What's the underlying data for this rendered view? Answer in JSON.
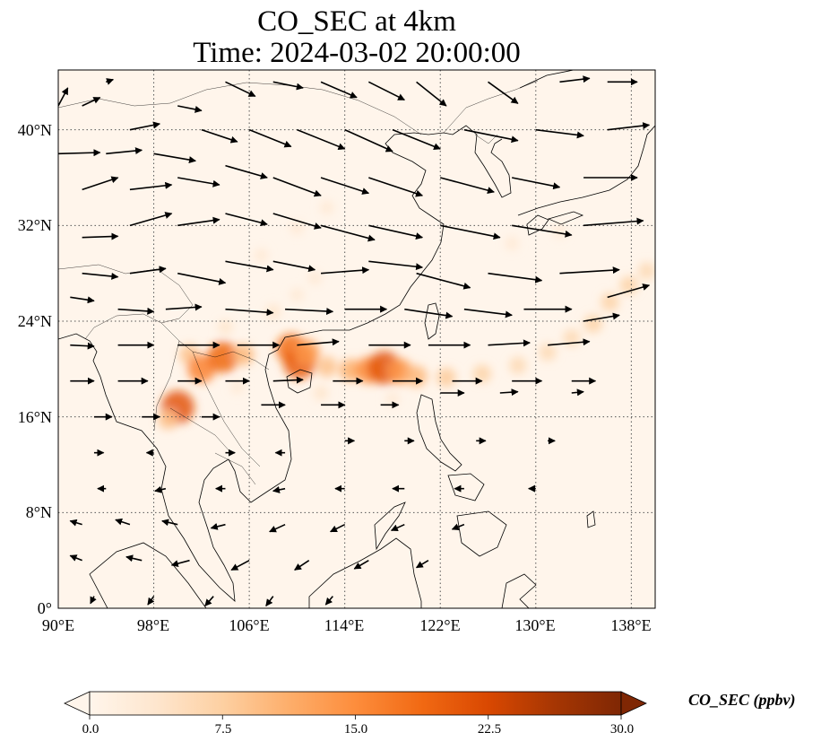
{
  "figure": {
    "title_line1": "CO_SEC at 4km",
    "title_line2": "Time: 2024-03-02 20:00:00"
  },
  "map": {
    "projection": "PlateCarree",
    "lon_range": [
      90,
      140
    ],
    "lat_range": [
      0,
      45
    ],
    "background_color": "#fff5eb",
    "gridlines": "dotted",
    "lat_ticks": [
      {
        "value": 0,
        "label": "0°"
      },
      {
        "value": 8,
        "label": "8°N"
      },
      {
        "value": 16,
        "label": "16°N"
      },
      {
        "value": 24,
        "label": "24°N"
      },
      {
        "value": 32,
        "label": "32°N"
      },
      {
        "value": 40,
        "label": "40°N"
      }
    ],
    "lon_ticks": [
      {
        "value": 90,
        "label": "90°E"
      },
      {
        "value": 98,
        "label": "98°E"
      },
      {
        "value": 106,
        "label": "106°E"
      },
      {
        "value": 114,
        "label": "114°E"
      },
      {
        "value": 122,
        "label": "122°E"
      },
      {
        "value": 130,
        "label": "130°E"
      },
      {
        "value": 138,
        "label": "138°E"
      }
    ],
    "plume": [
      {
        "lon": 101.0,
        "lat": 21.2,
        "value": 9
      },
      {
        "lon": 102.0,
        "lat": 20.0,
        "value": 16
      },
      {
        "lon": 103.8,
        "lat": 21.0,
        "value": 19
      },
      {
        "lon": 105.5,
        "lat": 21.2,
        "value": 10
      },
      {
        "lon": 109.5,
        "lat": 21.7,
        "value": 18
      },
      {
        "lon": 110.2,
        "lat": 20.5,
        "value": 20
      },
      {
        "lon": 110.8,
        "lat": 21.4,
        "value": 14
      },
      {
        "lon": 100.0,
        "lat": 16.8,
        "value": 21
      },
      {
        "lon": 99.2,
        "lat": 15.8,
        "value": 9
      },
      {
        "lon": 112.5,
        "lat": 20.2,
        "value": 9
      },
      {
        "lon": 114.5,
        "lat": 19.9,
        "value": 11
      },
      {
        "lon": 116.0,
        "lat": 19.9,
        "value": 15
      },
      {
        "lon": 117.3,
        "lat": 20.1,
        "value": 21
      },
      {
        "lon": 118.6,
        "lat": 19.8,
        "value": 14
      },
      {
        "lon": 120.0,
        "lat": 19.4,
        "value": 10
      },
      {
        "lon": 122.5,
        "lat": 19.3,
        "value": 8
      },
      {
        "lon": 125.5,
        "lat": 19.6,
        "value": 7
      },
      {
        "lon": 128.5,
        "lat": 20.3,
        "value": 6
      },
      {
        "lon": 131.0,
        "lat": 21.4,
        "value": 6
      },
      {
        "lon": 133.0,
        "lat": 22.6,
        "value": 6
      },
      {
        "lon": 134.8,
        "lat": 23.8,
        "value": 7
      },
      {
        "lon": 136.2,
        "lat": 25.6,
        "value": 7
      },
      {
        "lon": 137.8,
        "lat": 27.0,
        "value": 7
      },
      {
        "lon": 139.3,
        "lat": 28.2,
        "value": 6
      },
      {
        "lon": 104.0,
        "lat": 23.5,
        "value": 4
      },
      {
        "lon": 108.0,
        "lat": 24.8,
        "value": 4
      },
      {
        "lon": 110.0,
        "lat": 26.2,
        "value": 3
      },
      {
        "lon": 111.5,
        "lat": 27.6,
        "value": 3
      },
      {
        "lon": 107.0,
        "lat": 29.5,
        "value": 3
      },
      {
        "lon": 110.0,
        "lat": 31.8,
        "value": 3
      },
      {
        "lon": 112.5,
        "lat": 33.5,
        "value": 3
      },
      {
        "lon": 105.0,
        "lat": 18.5,
        "value": 3
      },
      {
        "lon": 112.0,
        "lat": 18.0,
        "value": 4
      },
      {
        "lon": 118.0,
        "lat": 17.5,
        "value": 3
      },
      {
        "lon": 128.0,
        "lat": 30.5,
        "value": 3
      },
      {
        "lon": 132.0,
        "lat": 31.5,
        "value": 3
      }
    ]
  },
  "wind_field": [
    {
      "lon": 90,
      "lat": 42,
      "dlon": 0.8,
      "dlat": 1.5
    },
    {
      "lon": 92,
      "lat": 42,
      "dlon": 1.5,
      "dlat": 0.7
    },
    {
      "lon": 94,
      "lat": 44,
      "dlon": 0.6,
      "dlat": 0.2
    },
    {
      "lon": 96,
      "lat": 40,
      "dlon": 2.5,
      "dlat": 0.5
    },
    {
      "lon": 100,
      "lat": 42,
      "dlon": 2.0,
      "dlat": -0.4
    },
    {
      "lon": 104,
      "lat": 44,
      "dlon": 2.5,
      "dlat": -1.2
    },
    {
      "lon": 108,
      "lat": 44,
      "dlon": 2.5,
      "dlat": -0.5
    },
    {
      "lon": 112,
      "lat": 44,
      "dlon": 3.0,
      "dlat": -1.3
    },
    {
      "lon": 116,
      "lat": 44,
      "dlon": 3.0,
      "dlat": -1.5
    },
    {
      "lon": 120,
      "lat": 44,
      "dlon": 2.5,
      "dlat": -2.0
    },
    {
      "lon": 126,
      "lat": 44,
      "dlon": 2.5,
      "dlat": -1.8
    },
    {
      "lon": 132,
      "lat": 44,
      "dlon": 2.5,
      "dlat": 0.3
    },
    {
      "lon": 136,
      "lat": 44,
      "dlon": 2.5,
      "dlat": 0.0
    },
    {
      "lon": 90,
      "lat": 38,
      "dlon": 3.5,
      "dlat": 0.1
    },
    {
      "lon": 94,
      "lat": 38,
      "dlon": 3.0,
      "dlat": 0.3
    },
    {
      "lon": 98,
      "lat": 38,
      "dlon": 3.5,
      "dlat": -0.6
    },
    {
      "lon": 102,
      "lat": 40,
      "dlon": 3.0,
      "dlat": -1.0
    },
    {
      "lon": 106,
      "lat": 40,
      "dlon": 3.5,
      "dlat": -1.4
    },
    {
      "lon": 110,
      "lat": 40,
      "dlon": 4.0,
      "dlat": -1.6
    },
    {
      "lon": 114,
      "lat": 40,
      "dlon": 4.0,
      "dlat": -1.8
    },
    {
      "lon": 118,
      "lat": 40,
      "dlon": 4.0,
      "dlat": -1.6
    },
    {
      "lon": 124,
      "lat": 40,
      "dlon": 4.5,
      "dlat": -0.9
    },
    {
      "lon": 130,
      "lat": 40,
      "dlon": 4.0,
      "dlat": -0.5
    },
    {
      "lon": 136,
      "lat": 40,
      "dlon": 3.5,
      "dlat": 0.4
    },
    {
      "lon": 92,
      "lat": 35,
      "dlon": 3.0,
      "dlat": 1.0
    },
    {
      "lon": 96,
      "lat": 35,
      "dlon": 3.5,
      "dlat": 0.4
    },
    {
      "lon": 100,
      "lat": 36,
      "dlon": 3.5,
      "dlat": -0.6
    },
    {
      "lon": 104,
      "lat": 37,
      "dlon": 3.5,
      "dlat": -1.0
    },
    {
      "lon": 108,
      "lat": 36,
      "dlon": 4.0,
      "dlat": -1.5
    },
    {
      "lon": 112,
      "lat": 36,
      "dlon": 4.0,
      "dlat": -1.3
    },
    {
      "lon": 116,
      "lat": 36,
      "dlon": 4.5,
      "dlat": -1.5
    },
    {
      "lon": 122,
      "lat": 36,
      "dlon": 4.5,
      "dlat": -1.2
    },
    {
      "lon": 128,
      "lat": 36,
      "dlon": 4.0,
      "dlat": -0.8
    },
    {
      "lon": 134,
      "lat": 36,
      "dlon": 4.5,
      "dlat": 0.0
    },
    {
      "lon": 92,
      "lat": 31,
      "dlon": 3.0,
      "dlat": 0.1
    },
    {
      "lon": 96,
      "lat": 32,
      "dlon": 3.5,
      "dlat": 1.0
    },
    {
      "lon": 100,
      "lat": 32,
      "dlon": 3.5,
      "dlat": 0.5
    },
    {
      "lon": 104,
      "lat": 33,
      "dlon": 3.5,
      "dlat": -0.9
    },
    {
      "lon": 108,
      "lat": 33,
      "dlon": 4.0,
      "dlat": -1.2
    },
    {
      "lon": 112,
      "lat": 32,
      "dlon": 4.5,
      "dlat": -1.2
    },
    {
      "lon": 116,
      "lat": 32,
      "dlon": 4.5,
      "dlat": -1.0
    },
    {
      "lon": 122,
      "lat": 32,
      "dlon": 5.0,
      "dlat": -1.0
    },
    {
      "lon": 128,
      "lat": 32,
      "dlon": 5.0,
      "dlat": -0.8
    },
    {
      "lon": 134,
      "lat": 32,
      "dlon": 5.0,
      "dlat": 0.4
    },
    {
      "lon": 92,
      "lat": 28,
      "dlon": 3.0,
      "dlat": -0.3
    },
    {
      "lon": 96,
      "lat": 28,
      "dlon": 3.0,
      "dlat": 0.4
    },
    {
      "lon": 100,
      "lat": 28,
      "dlon": 4.0,
      "dlat": -0.8
    },
    {
      "lon": 104,
      "lat": 29,
      "dlon": 4.0,
      "dlat": -0.7
    },
    {
      "lon": 108,
      "lat": 29,
      "dlon": 3.5,
      "dlat": -0.7
    },
    {
      "lon": 112,
      "lat": 28,
      "dlon": 4.0,
      "dlat": 0.3
    },
    {
      "lon": 116,
      "lat": 29,
      "dlon": 4.5,
      "dlat": -0.5
    },
    {
      "lon": 120,
      "lat": 28,
      "dlon": 4.5,
      "dlat": -1.2
    },
    {
      "lon": 126,
      "lat": 28,
      "dlon": 4.5,
      "dlat": -0.6
    },
    {
      "lon": 132,
      "lat": 28,
      "dlon": 5.0,
      "dlat": 0.3
    },
    {
      "lon": 136,
      "lat": 26,
      "dlon": 3.5,
      "dlat": 1.0
    },
    {
      "lon": 91,
      "lat": 26,
      "dlon": 2.0,
      "dlat": -0.3
    },
    {
      "lon": 95,
      "lat": 25,
      "dlon": 3.0,
      "dlat": -0.2
    },
    {
      "lon": 99,
      "lat": 25,
      "dlon": 3.0,
      "dlat": 0.2
    },
    {
      "lon": 104,
      "lat": 25,
      "dlon": 4.0,
      "dlat": -0.3
    },
    {
      "lon": 109,
      "lat": 25,
      "dlon": 4.0,
      "dlat": -0.2
    },
    {
      "lon": 114,
      "lat": 25,
      "dlon": 3.5,
      "dlat": 0.0
    },
    {
      "lon": 119,
      "lat": 25,
      "dlon": 4.0,
      "dlat": -0.6
    },
    {
      "lon": 124,
      "lat": 25,
      "dlon": 4.0,
      "dlat": -0.5
    },
    {
      "lon": 129,
      "lat": 25,
      "dlon": 4.0,
      "dlat": 0.0
    },
    {
      "lon": 134,
      "lat": 24,
      "dlon": 3.0,
      "dlat": 0.5
    },
    {
      "lon": 91,
      "lat": 22,
      "dlon": 2.0,
      "dlat": -0.1
    },
    {
      "lon": 95,
      "lat": 22,
      "dlon": 3.0,
      "dlat": 0.0
    },
    {
      "lon": 100,
      "lat": 22,
      "dlon": 3.5,
      "dlat": 0.0
    },
    {
      "lon": 105,
      "lat": 22,
      "dlon": 3.5,
      "dlat": 0.0
    },
    {
      "lon": 110,
      "lat": 22,
      "dlon": 3.5,
      "dlat": 0.3
    },
    {
      "lon": 116,
      "lat": 22,
      "dlon": 3.5,
      "dlat": 0.0
    },
    {
      "lon": 121,
      "lat": 22,
      "dlon": 3.5,
      "dlat": 0.0
    },
    {
      "lon": 126,
      "lat": 22,
      "dlon": 3.5,
      "dlat": 0.2
    },
    {
      "lon": 131,
      "lat": 22,
      "dlon": 3.5,
      "dlat": 0.3
    },
    {
      "lon": 91,
      "lat": 19,
      "dlon": 2.0,
      "dlat": 0.0
    },
    {
      "lon": 95,
      "lat": 19,
      "dlon": 2.5,
      "dlat": 0.0
    },
    {
      "lon": 100,
      "lat": 19,
      "dlon": 2.0,
      "dlat": 0.0
    },
    {
      "lon": 104,
      "lat": 19,
      "dlon": 2.0,
      "dlat": 0.0
    },
    {
      "lon": 108,
      "lat": 19,
      "dlon": 2.5,
      "dlat": 0.1
    },
    {
      "lon": 113,
      "lat": 19,
      "dlon": 2.5,
      "dlat": 0.0
    },
    {
      "lon": 118,
      "lat": 19,
      "dlon": 2.5,
      "dlat": 0.0
    },
    {
      "lon": 123,
      "lat": 19,
      "dlon": 2.5,
      "dlat": 0.0
    },
    {
      "lon": 128,
      "lat": 19,
      "dlon": 2.5,
      "dlat": 0.0
    },
    {
      "lon": 133,
      "lat": 19,
      "dlon": 2.0,
      "dlat": 0.0
    },
    {
      "lon": 93,
      "lat": 16,
      "dlon": 1.5,
      "dlat": 0.0
    },
    {
      "lon": 97,
      "lat": 16,
      "dlon": 1.5,
      "dlat": 0.0
    },
    {
      "lon": 102,
      "lat": 16,
      "dlon": 1.5,
      "dlat": 0.0
    },
    {
      "lon": 107,
      "lat": 17,
      "dlon": 2.0,
      "dlat": 0.0
    },
    {
      "lon": 112,
      "lat": 17,
      "dlon": 2.0,
      "dlat": 0.0
    },
    {
      "lon": 117,
      "lat": 17,
      "dlon": 1.5,
      "dlat": 0.0
    },
    {
      "lon": 122,
      "lat": 18,
      "dlon": 2.0,
      "dlat": 0.0
    },
    {
      "lon": 127,
      "lat": 18,
      "dlon": 1.5,
      "dlat": 0.1
    },
    {
      "lon": 133,
      "lat": 18,
      "dlon": 1.0,
      "dlat": 0.1
    },
    {
      "lon": 93,
      "lat": 13,
      "dlon": 0.8,
      "dlat": 0.0
    },
    {
      "lon": 98,
      "lat": 13,
      "dlon": -0.6,
      "dlat": 0.0
    },
    {
      "lon": 104,
      "lat": 13,
      "dlon": 0.8,
      "dlat": 0.0
    },
    {
      "lon": 109,
      "lat": 13,
      "dlon": -0.8,
      "dlat": 0.0
    },
    {
      "lon": 114,
      "lat": 14,
      "dlon": 0.8,
      "dlat": 0.0
    },
    {
      "lon": 119,
      "lat": 14,
      "dlon": 0.8,
      "dlat": 0.0
    },
    {
      "lon": 125,
      "lat": 14,
      "dlon": 0.8,
      "dlat": 0.0
    },
    {
      "lon": 131,
      "lat": 14,
      "dlon": 0.6,
      "dlat": 0.0
    },
    {
      "lon": 94,
      "lat": 10,
      "dlon": -0.7,
      "dlat": 0.0
    },
    {
      "lon": 99,
      "lat": 10,
      "dlon": -0.9,
      "dlat": -0.2
    },
    {
      "lon": 104,
      "lat": 10,
      "dlon": -0.8,
      "dlat": 0.0
    },
    {
      "lon": 109,
      "lat": 10,
      "dlon": -1.0,
      "dlat": -0.2
    },
    {
      "lon": 114,
      "lat": 10,
      "dlon": -0.8,
      "dlat": 0.0
    },
    {
      "lon": 119,
      "lat": 10,
      "dlon": -1.0,
      "dlat": 0.0
    },
    {
      "lon": 124,
      "lat": 10,
      "dlon": -0.8,
      "dlat": 0.0
    },
    {
      "lon": 130,
      "lat": 10,
      "dlon": -0.6,
      "dlat": 0.0
    },
    {
      "lon": 92,
      "lat": 7,
      "dlon": -1.0,
      "dlat": 0.3
    },
    {
      "lon": 96,
      "lat": 7,
      "dlon": -1.2,
      "dlat": 0.4
    },
    {
      "lon": 100,
      "lat": 7,
      "dlon": -1.3,
      "dlat": 0.3
    },
    {
      "lon": 104,
      "lat": 7,
      "dlon": -1.2,
      "dlat": -0.3
    },
    {
      "lon": 109,
      "lat": 7,
      "dlon": -1.3,
      "dlat": -0.6
    },
    {
      "lon": 114,
      "lat": 7,
      "dlon": -1.2,
      "dlat": -0.6
    },
    {
      "lon": 119,
      "lat": 7,
      "dlon": -1.1,
      "dlat": -0.5
    },
    {
      "lon": 124,
      "lat": 7,
      "dlon": -1.0,
      "dlat": -0.4
    },
    {
      "lon": 92,
      "lat": 4,
      "dlon": -1.0,
      "dlat": 0.4
    },
    {
      "lon": 97,
      "lat": 4,
      "dlon": -1.3,
      "dlat": 0.3
    },
    {
      "lon": 101,
      "lat": 4,
      "dlon": -1.5,
      "dlat": -0.4
    },
    {
      "lon": 106,
      "lat": 4,
      "dlon": -1.5,
      "dlat": -0.8
    },
    {
      "lon": 111,
      "lat": 4,
      "dlon": -1.2,
      "dlat": -0.8
    },
    {
      "lon": 116,
      "lat": 4,
      "dlon": -1.2,
      "dlat": -0.7
    },
    {
      "lon": 121,
      "lat": 4,
      "dlon": -1.0,
      "dlat": -0.6
    },
    {
      "lon": 93,
      "lat": 1,
      "dlon": -0.3,
      "dlat": -0.6
    },
    {
      "lon": 98,
      "lat": 1,
      "dlon": -0.5,
      "dlat": -0.7
    },
    {
      "lon": 103,
      "lat": 1,
      "dlon": -0.7,
      "dlat": -0.8
    },
    {
      "lon": 108,
      "lat": 1,
      "dlon": -0.6,
      "dlat": -0.8
    },
    {
      "lon": 113,
      "lat": 1,
      "dlon": -0.6,
      "dlat": -0.7
    }
  ],
  "colorbar": {
    "label": "CO_SEC (ppbv)",
    "range": [
      0,
      30
    ],
    "extend": "both",
    "cmap_stops": [
      "#fff5eb",
      "#fee6ce",
      "#fdd0a2",
      "#fdae6b",
      "#fd8d3c",
      "#f16913",
      "#d94801",
      "#a63603",
      "#7f2704"
    ],
    "ticks": [
      {
        "value": 0,
        "label": "0.0"
      },
      {
        "value": 7.5,
        "label": "7.5"
      },
      {
        "value": 15,
        "label": "15.0"
      },
      {
        "value": 22.5,
        "label": "22.5"
      },
      {
        "value": 30,
        "label": "30.0"
      }
    ]
  }
}
